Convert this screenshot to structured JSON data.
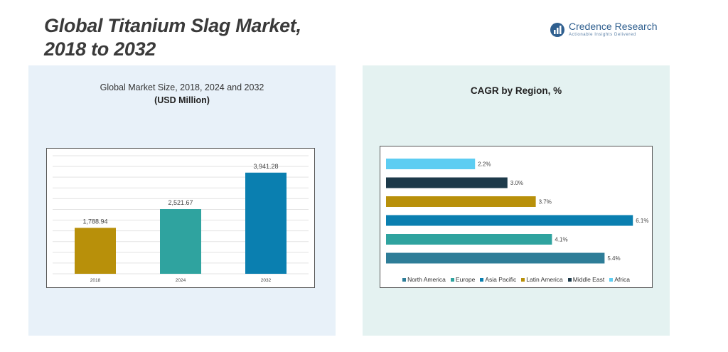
{
  "title_line1": "Global Titanium Slag Market,",
  "title_line2": "2018 to 2032",
  "logo": {
    "name": "Credence Research",
    "tagline": "Actionable Insights Delivered"
  },
  "left_panel": {
    "subtitle": "Global Market Size, 2018, 2024 and 2032",
    "unit": "(USD Million)"
  },
  "right_panel": {
    "title": "CAGR by Region, %"
  },
  "colors": {
    "bar_2018": "#b8900a",
    "bar_2024": "#2fa39f",
    "bar_2032": "#0a7fb0",
    "north_america": "#2e7d98",
    "europe": "#2fa39f",
    "asia_pacific": "#0a7fb0",
    "latin_america": "#b8900a",
    "middle_east": "#1d3a4a",
    "africa": "#5dcdf2"
  },
  "chart_data": [
    {
      "type": "bar",
      "categories": [
        "2018",
        "2024",
        "2032"
      ],
      "values": [
        1788.94,
        2521.67,
        3941.28
      ],
      "value_labels": [
        "1,788.94",
        "2,521.67",
        "3,941.28"
      ],
      "title": "Global Market Size, 2018, 2024 and 2032",
      "ylabel": "(USD Million)",
      "ylim": [
        0,
        4600
      ],
      "grid": true
    },
    {
      "type": "bar",
      "orientation": "horizontal",
      "title": "CAGR by Region, %",
      "categories": [
        "Africa",
        "Middle East",
        "Latin America",
        "Asia Pacific",
        "Europe",
        "North America"
      ],
      "values": [
        2.2,
        3.0,
        3.7,
        6.1,
        4.1,
        5.4
      ],
      "value_labels": [
        "2.2%",
        "3.0%",
        "3.7%",
        "6.1%",
        "4.1%",
        "5.4%"
      ],
      "xlim": [
        0,
        6.5
      ],
      "legend": [
        "North America",
        "Europe",
        "Asia Pacific",
        "Latin America",
        "Middle East",
        "Africa"
      ],
      "legend_position": "bottom"
    }
  ]
}
